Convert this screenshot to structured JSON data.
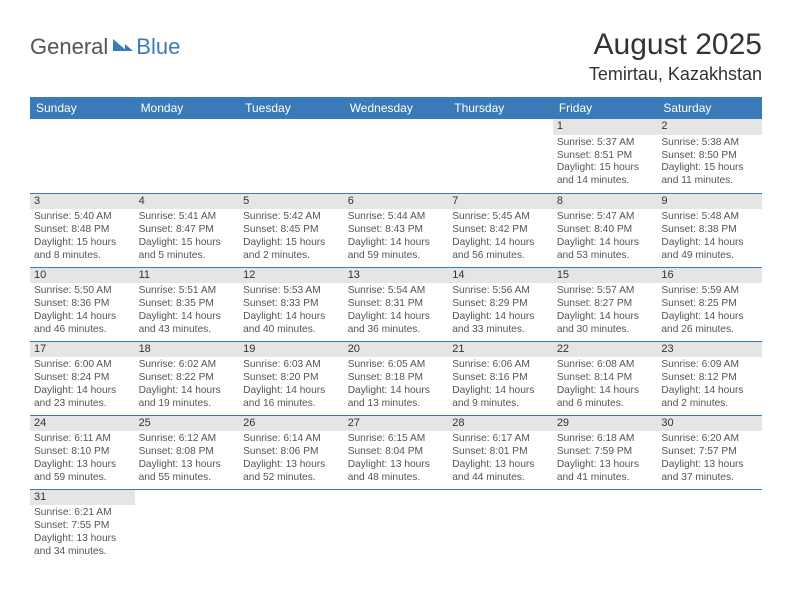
{
  "logo": {
    "part1": "General",
    "part2": "Blue"
  },
  "title": "August 2025",
  "location": "Temirtau, Kazakhstan",
  "colors": {
    "accent": "#3a7ab8",
    "daynum_bg": "#e5e5e5",
    "text": "#444"
  },
  "weekdays": [
    "Sunday",
    "Monday",
    "Tuesday",
    "Wednesday",
    "Thursday",
    "Friday",
    "Saturday"
  ],
  "weeks": [
    [
      null,
      null,
      null,
      null,
      null,
      {
        "n": "1",
        "sr": "5:37 AM",
        "ss": "8:51 PM",
        "dl": "15 hours and 14 minutes."
      },
      {
        "n": "2",
        "sr": "5:38 AM",
        "ss": "8:50 PM",
        "dl": "15 hours and 11 minutes."
      }
    ],
    [
      {
        "n": "3",
        "sr": "5:40 AM",
        "ss": "8:48 PM",
        "dl": "15 hours and 8 minutes."
      },
      {
        "n": "4",
        "sr": "5:41 AM",
        "ss": "8:47 PM",
        "dl": "15 hours and 5 minutes."
      },
      {
        "n": "5",
        "sr": "5:42 AM",
        "ss": "8:45 PM",
        "dl": "15 hours and 2 minutes."
      },
      {
        "n": "6",
        "sr": "5:44 AM",
        "ss": "8:43 PM",
        "dl": "14 hours and 59 minutes."
      },
      {
        "n": "7",
        "sr": "5:45 AM",
        "ss": "8:42 PM",
        "dl": "14 hours and 56 minutes."
      },
      {
        "n": "8",
        "sr": "5:47 AM",
        "ss": "8:40 PM",
        "dl": "14 hours and 53 minutes."
      },
      {
        "n": "9",
        "sr": "5:48 AM",
        "ss": "8:38 PM",
        "dl": "14 hours and 49 minutes."
      }
    ],
    [
      {
        "n": "10",
        "sr": "5:50 AM",
        "ss": "8:36 PM",
        "dl": "14 hours and 46 minutes."
      },
      {
        "n": "11",
        "sr": "5:51 AM",
        "ss": "8:35 PM",
        "dl": "14 hours and 43 minutes."
      },
      {
        "n": "12",
        "sr": "5:53 AM",
        "ss": "8:33 PM",
        "dl": "14 hours and 40 minutes."
      },
      {
        "n": "13",
        "sr": "5:54 AM",
        "ss": "8:31 PM",
        "dl": "14 hours and 36 minutes."
      },
      {
        "n": "14",
        "sr": "5:56 AM",
        "ss": "8:29 PM",
        "dl": "14 hours and 33 minutes."
      },
      {
        "n": "15",
        "sr": "5:57 AM",
        "ss": "8:27 PM",
        "dl": "14 hours and 30 minutes."
      },
      {
        "n": "16",
        "sr": "5:59 AM",
        "ss": "8:25 PM",
        "dl": "14 hours and 26 minutes."
      }
    ],
    [
      {
        "n": "17",
        "sr": "6:00 AM",
        "ss": "8:24 PM",
        "dl": "14 hours and 23 minutes."
      },
      {
        "n": "18",
        "sr": "6:02 AM",
        "ss": "8:22 PM",
        "dl": "14 hours and 19 minutes."
      },
      {
        "n": "19",
        "sr": "6:03 AM",
        "ss": "8:20 PM",
        "dl": "14 hours and 16 minutes."
      },
      {
        "n": "20",
        "sr": "6:05 AM",
        "ss": "8:18 PM",
        "dl": "14 hours and 13 minutes."
      },
      {
        "n": "21",
        "sr": "6:06 AM",
        "ss": "8:16 PM",
        "dl": "14 hours and 9 minutes."
      },
      {
        "n": "22",
        "sr": "6:08 AM",
        "ss": "8:14 PM",
        "dl": "14 hours and 6 minutes."
      },
      {
        "n": "23",
        "sr": "6:09 AM",
        "ss": "8:12 PM",
        "dl": "14 hours and 2 minutes."
      }
    ],
    [
      {
        "n": "24",
        "sr": "6:11 AM",
        "ss": "8:10 PM",
        "dl": "13 hours and 59 minutes."
      },
      {
        "n": "25",
        "sr": "6:12 AM",
        "ss": "8:08 PM",
        "dl": "13 hours and 55 minutes."
      },
      {
        "n": "26",
        "sr": "6:14 AM",
        "ss": "8:06 PM",
        "dl": "13 hours and 52 minutes."
      },
      {
        "n": "27",
        "sr": "6:15 AM",
        "ss": "8:04 PM",
        "dl": "13 hours and 48 minutes."
      },
      {
        "n": "28",
        "sr": "6:17 AM",
        "ss": "8:01 PM",
        "dl": "13 hours and 44 minutes."
      },
      {
        "n": "29",
        "sr": "6:18 AM",
        "ss": "7:59 PM",
        "dl": "13 hours and 41 minutes."
      },
      {
        "n": "30",
        "sr": "6:20 AM",
        "ss": "7:57 PM",
        "dl": "13 hours and 37 minutes."
      }
    ],
    [
      {
        "n": "31",
        "sr": "6:21 AM",
        "ss": "7:55 PM",
        "dl": "13 hours and 34 minutes."
      },
      null,
      null,
      null,
      null,
      null,
      null
    ]
  ],
  "labels": {
    "sunrise": "Sunrise:",
    "sunset": "Sunset:",
    "daylight": "Daylight:"
  }
}
